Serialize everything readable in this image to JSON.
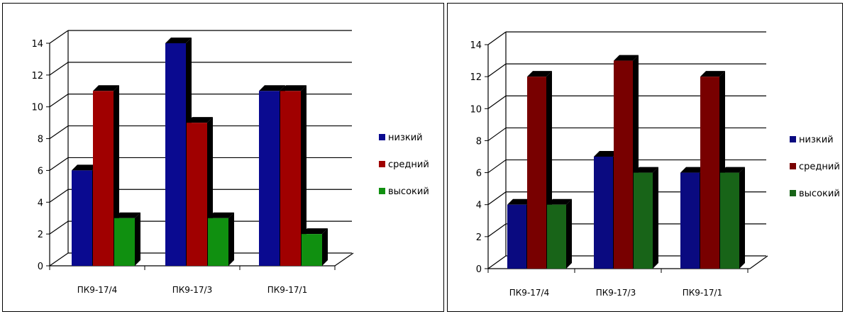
{
  "chart_data": [
    {
      "type": "bar",
      "categories": [
        "ПК9-17/4",
        "ПК9-17/3",
        "ПК9-17/1"
      ],
      "series": [
        {
          "name": "низкий",
          "values": [
            6,
            14,
            11
          ],
          "color": "#0a0a90"
        },
        {
          "name": "средний",
          "values": [
            11,
            9,
            11
          ],
          "color": "#a00000"
        },
        {
          "name": "высокий",
          "values": [
            3,
            3,
            2
          ],
          "color": "#109010"
        }
      ],
      "yticks": [
        "0",
        "2",
        "4",
        "6",
        "8",
        "10",
        "12",
        "14"
      ],
      "ylim": [
        0,
        14
      ],
      "grid": true,
      "style": "3d",
      "legend": "right"
    },
    {
      "type": "bar",
      "categories": [
        "ПК9-17/4",
        "ПК9-17/3",
        "ПК9-17/1"
      ],
      "series": [
        {
          "name": "низкий",
          "values": [
            4,
            7,
            6
          ],
          "color": "#0a0a80"
        },
        {
          "name": "средний",
          "values": [
            12,
            13,
            12
          ],
          "color": "#780000"
        },
        {
          "name": "высокий",
          "values": [
            4,
            6,
            6
          ],
          "color": "#186418"
        }
      ],
      "yticks": [
        "0",
        "2",
        "4",
        "6",
        "8",
        "10",
        "12",
        "14"
      ],
      "ylim": [
        0,
        14
      ],
      "grid": true,
      "style": "3d",
      "legend": "right"
    }
  ]
}
